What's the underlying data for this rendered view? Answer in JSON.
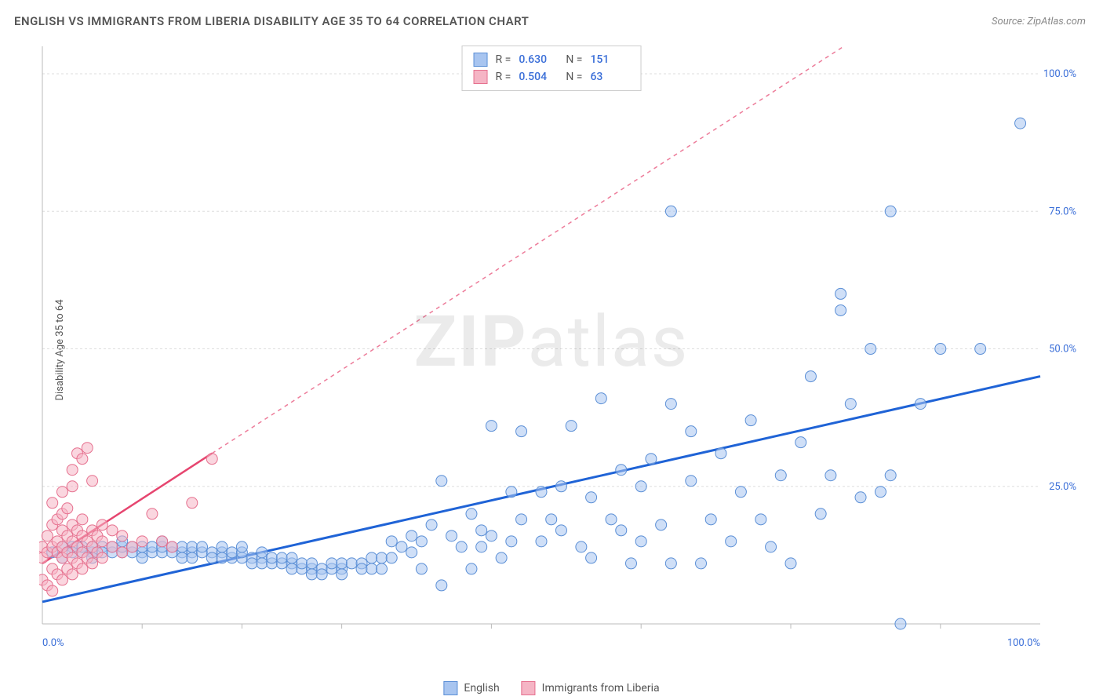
{
  "title": "ENGLISH VS IMMIGRANTS FROM LIBERIA DISABILITY AGE 35 TO 64 CORRELATION CHART",
  "source": "Source: ZipAtlas.com",
  "y_axis_label": "Disability Age 35 to 64",
  "watermark": {
    "bold": "ZIP",
    "light": "atlas"
  },
  "chart": {
    "type": "scatter",
    "xlim": [
      0,
      100
    ],
    "ylim": [
      0,
      105
    ],
    "x_ticks": [
      0,
      100
    ],
    "x_tick_labels": [
      "0.0%",
      "100.0%"
    ],
    "y_ticks": [
      25,
      50,
      75,
      100
    ],
    "y_tick_labels": [
      "25.0%",
      "50.0%",
      "75.0%",
      "100.0%"
    ],
    "y_minor_x_positions": [
      10,
      20,
      30,
      45,
      60,
      75,
      90
    ],
    "grid_color": "#dddddd",
    "axis_color": "#bbbbbb",
    "background_color": "#ffffff",
    "series": [
      {
        "name": "English",
        "color_fill": "#a8c5f0",
        "color_stroke": "#5b8fd6",
        "fill_opacity": 0.55,
        "marker_radius": 7,
        "R": "0.630",
        "N": "151",
        "trend": {
          "x1": 0,
          "y1": 4,
          "x2": 100,
          "y2": 45,
          "extend_x": 100,
          "extend_y": 45,
          "color": "#1f63d6",
          "width": 3
        },
        "points": [
          [
            1,
            13
          ],
          [
            2,
            14
          ],
          [
            2,
            12
          ],
          [
            3,
            14
          ],
          [
            3,
            13
          ],
          [
            4,
            13
          ],
          [
            4,
            14
          ],
          [
            5,
            13
          ],
          [
            5,
            14
          ],
          [
            5,
            12
          ],
          [
            6,
            14
          ],
          [
            6,
            13
          ],
          [
            7,
            13
          ],
          [
            7,
            14
          ],
          [
            8,
            13
          ],
          [
            8,
            14
          ],
          [
            8,
            15
          ],
          [
            9,
            13
          ],
          [
            9,
            14
          ],
          [
            10,
            13
          ],
          [
            10,
            14
          ],
          [
            10,
            12
          ],
          [
            11,
            13
          ],
          [
            11,
            14
          ],
          [
            12,
            13
          ],
          [
            12,
            14
          ],
          [
            12,
            15
          ],
          [
            13,
            13
          ],
          [
            13,
            14
          ],
          [
            14,
            13
          ],
          [
            14,
            14
          ],
          [
            14,
            12
          ],
          [
            15,
            13
          ],
          [
            15,
            14
          ],
          [
            15,
            12
          ],
          [
            16,
            13
          ],
          [
            16,
            14
          ],
          [
            17,
            13
          ],
          [
            17,
            12
          ],
          [
            18,
            13
          ],
          [
            18,
            14
          ],
          [
            18,
            12
          ],
          [
            19,
            12
          ],
          [
            19,
            13
          ],
          [
            20,
            12
          ],
          [
            20,
            13
          ],
          [
            20,
            14
          ],
          [
            21,
            12
          ],
          [
            21,
            11
          ],
          [
            22,
            12
          ],
          [
            22,
            11
          ],
          [
            22,
            13
          ],
          [
            23,
            11
          ],
          [
            23,
            12
          ],
          [
            24,
            11
          ],
          [
            24,
            12
          ],
          [
            25,
            11
          ],
          [
            25,
            10
          ],
          [
            25,
            12
          ],
          [
            26,
            10
          ],
          [
            26,
            11
          ],
          [
            27,
            10
          ],
          [
            27,
            11
          ],
          [
            27,
            9
          ],
          [
            28,
            10
          ],
          [
            28,
            9
          ],
          [
            29,
            10
          ],
          [
            29,
            11
          ],
          [
            30,
            10
          ],
          [
            30,
            9
          ],
          [
            30,
            11
          ],
          [
            31,
            11
          ],
          [
            32,
            11
          ],
          [
            32,
            10
          ],
          [
            33,
            10
          ],
          [
            33,
            12
          ],
          [
            34,
            12
          ],
          [
            34,
            10
          ],
          [
            35,
            12
          ],
          [
            35,
            15
          ],
          [
            36,
            14
          ],
          [
            37,
            13
          ],
          [
            37,
            16
          ],
          [
            38,
            15
          ],
          [
            38,
            10
          ],
          [
            39,
            18
          ],
          [
            40,
            7
          ],
          [
            40,
            26
          ],
          [
            41,
            16
          ],
          [
            42,
            14
          ],
          [
            43,
            10
          ],
          [
            43,
            20
          ],
          [
            44,
            14
          ],
          [
            44,
            17
          ],
          [
            45,
            16
          ],
          [
            45,
            36
          ],
          [
            46,
            12
          ],
          [
            47,
            15
          ],
          [
            47,
            24
          ],
          [
            48,
            19
          ],
          [
            48,
            35
          ],
          [
            50,
            15
          ],
          [
            50,
            24
          ],
          [
            51,
            19
          ],
          [
            52,
            17
          ],
          [
            52,
            25
          ],
          [
            53,
            36
          ],
          [
            54,
            14
          ],
          [
            55,
            12
          ],
          [
            55,
            23
          ],
          [
            56,
            41
          ],
          [
            57,
            19
          ],
          [
            58,
            17
          ],
          [
            58,
            28
          ],
          [
            59,
            11
          ],
          [
            60,
            15
          ],
          [
            60,
            25
          ],
          [
            61,
            30
          ],
          [
            62,
            18
          ],
          [
            63,
            11
          ],
          [
            63,
            40
          ],
          [
            63,
            75
          ],
          [
            65,
            26
          ],
          [
            65,
            35
          ],
          [
            66,
            11
          ],
          [
            67,
            19
          ],
          [
            68,
            31
          ],
          [
            69,
            15
          ],
          [
            70,
            24
          ],
          [
            71,
            37
          ],
          [
            72,
            19
          ],
          [
            73,
            14
          ],
          [
            74,
            27
          ],
          [
            75,
            11
          ],
          [
            76,
            33
          ],
          [
            77,
            45
          ],
          [
            78,
            20
          ],
          [
            79,
            27
          ],
          [
            80,
            60
          ],
          [
            80,
            57
          ],
          [
            81,
            40
          ],
          [
            82,
            23
          ],
          [
            83,
            50
          ],
          [
            84,
            24
          ],
          [
            85,
            27
          ],
          [
            85,
            75
          ],
          [
            86,
            0
          ],
          [
            88,
            40
          ],
          [
            90,
            50
          ],
          [
            94,
            50
          ],
          [
            98,
            91
          ]
        ]
      },
      {
        "name": "Immigrants from Liberia",
        "color_fill": "#f5b5c5",
        "color_stroke": "#e6718f",
        "fill_opacity": 0.55,
        "marker_radius": 7,
        "R": "0.504",
        "N": "63",
        "trend": {
          "x1": 0,
          "y1": 11,
          "x2": 17,
          "y2": 31,
          "extend_x": 100,
          "extend_y": 128,
          "color": "#e6456f",
          "width": 2.5
        },
        "points": [
          [
            0,
            8
          ],
          [
            0,
            12
          ],
          [
            0,
            14
          ],
          [
            0.5,
            7
          ],
          [
            0.5,
            13
          ],
          [
            0.5,
            16
          ],
          [
            1,
            6
          ],
          [
            1,
            10
          ],
          [
            1,
            14
          ],
          [
            1,
            18
          ],
          [
            1,
            22
          ],
          [
            1.5,
            9
          ],
          [
            1.5,
            13
          ],
          [
            1.5,
            15
          ],
          [
            1.5,
            19
          ],
          [
            2,
            8
          ],
          [
            2,
            12
          ],
          [
            2,
            14
          ],
          [
            2,
            17
          ],
          [
            2,
            20
          ],
          [
            2,
            24
          ],
          [
            2.5,
            10
          ],
          [
            2.5,
            13
          ],
          [
            2.5,
            16
          ],
          [
            2.5,
            21
          ],
          [
            3,
            9
          ],
          [
            3,
            12
          ],
          [
            3,
            15
          ],
          [
            3,
            18
          ],
          [
            3,
            25
          ],
          [
            3,
            28
          ],
          [
            3.5,
            11
          ],
          [
            3.5,
            14
          ],
          [
            3.5,
            17
          ],
          [
            3.5,
            31
          ],
          [
            4,
            10
          ],
          [
            4,
            13
          ],
          [
            4,
            16
          ],
          [
            4,
            19
          ],
          [
            4,
            30
          ],
          [
            4.5,
            12
          ],
          [
            4.5,
            15
          ],
          [
            4.5,
            32
          ],
          [
            5,
            11
          ],
          [
            5,
            14
          ],
          [
            5,
            17
          ],
          [
            5,
            26
          ],
          [
            5.5,
            13
          ],
          [
            5.5,
            16
          ],
          [
            6,
            12
          ],
          [
            6,
            15
          ],
          [
            6,
            18
          ],
          [
            7,
            14
          ],
          [
            7,
            17
          ],
          [
            8,
            13
          ],
          [
            8,
            16
          ],
          [
            9,
            14
          ],
          [
            10,
            15
          ],
          [
            11,
            20
          ],
          [
            12,
            15
          ],
          [
            13,
            14
          ],
          [
            15,
            22
          ],
          [
            17,
            30
          ]
        ]
      }
    ]
  },
  "legend_bottom": [
    {
      "label": "English",
      "fill": "#a8c5f0",
      "stroke": "#5b8fd6"
    },
    {
      "label": "Immigrants from Liberia",
      "fill": "#f5b5c5",
      "stroke": "#e6718f"
    }
  ]
}
